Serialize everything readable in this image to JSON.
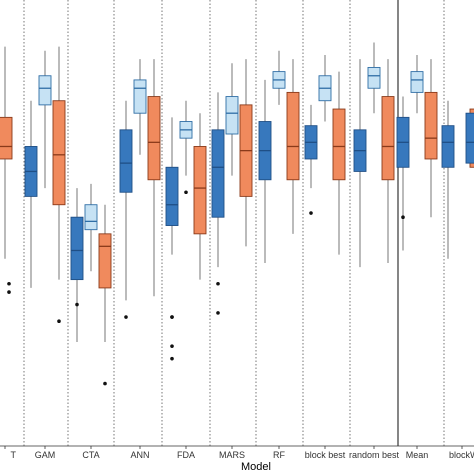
{
  "colors": {
    "dark_blue": "#3778bd",
    "light_blue": "#c6e2f4",
    "orange": "#f08a5d",
    "dark_blue_edge": "#1f4f86",
    "light_blue_edge": "#2f6ea6",
    "orange_edge": "#8a3a1a",
    "whisker": "#555555",
    "separator": "#555555",
    "solid_separator": "#222222"
  },
  "chart_data": {
    "type": "boxplot",
    "title": "",
    "xlabel": "Model",
    "ylabel": "",
    "ylim": [
      0,
      1
    ],
    "grid": false,
    "categories": [
      "T",
      "GAM",
      "CTA",
      "ANN",
      "FDA",
      "MARS",
      "RF",
      "block best",
      "random best",
      "Mean",
      "blockW"
    ],
    "solid_separator_after": "random best",
    "series": [
      {
        "color_key": "dark_blue",
        "boxes": [
          null,
          {
            "whisker_low": 0.38,
            "q1": 0.6,
            "median": 0.66,
            "q3": 0.72,
            "whisker_high": 0.83,
            "outliers": []
          },
          {
            "whisker_low": 0.25,
            "q1": 0.4,
            "median": 0.47,
            "q3": 0.55,
            "whisker_high": 0.62,
            "outliers": [
              0.34
            ]
          },
          {
            "whisker_low": 0.35,
            "q1": 0.61,
            "median": 0.68,
            "q3": 0.76,
            "whisker_high": 0.83,
            "outliers": [
              0.31
            ]
          },
          {
            "whisker_low": 0.46,
            "q1": 0.53,
            "median": 0.58,
            "q3": 0.67,
            "whisker_high": 0.79,
            "outliers": [
              0.31,
              0.31,
              0.24,
              0.21
            ]
          },
          {
            "whisker_low": 0.43,
            "q1": 0.55,
            "median": 0.67,
            "q3": 0.76,
            "whisker_high": 0.85,
            "outliers": [
              0.39,
              0.32
            ]
          },
          {
            "whisker_low": 0.44,
            "q1": 0.64,
            "median": 0.71,
            "q3": 0.78,
            "whisker_high": 0.88,
            "outliers": []
          },
          {
            "whisker_low": 0.62,
            "q1": 0.69,
            "median": 0.73,
            "q3": 0.77,
            "whisker_high": 0.82,
            "outliers": [
              0.56
            ]
          },
          {
            "whisker_low": 0.43,
            "q1": 0.66,
            "median": 0.71,
            "q3": 0.76,
            "whisker_high": 0.93,
            "outliers": []
          },
          {
            "whisker_low": 0.47,
            "q1": 0.67,
            "median": 0.73,
            "q3": 0.79,
            "whisker_high": 0.84,
            "outliers": [
              0.55
            ]
          },
          {
            "whisker_low": 0.45,
            "q1": 0.67,
            "median": 0.73,
            "q3": 0.77,
            "whisker_high": 0.83,
            "outliers": []
          }
        ]
      },
      {
        "color_key": "light_blue",
        "boxes": [
          null,
          {
            "whisker_low": 0.62,
            "q1": 0.82,
            "median": 0.86,
            "q3": 0.89,
            "whisker_high": 0.95,
            "outliers": []
          },
          {
            "whisker_low": 0.42,
            "q1": 0.52,
            "median": 0.54,
            "q3": 0.58,
            "whisker_high": 0.63,
            "outliers": []
          },
          {
            "whisker_low": 0.7,
            "q1": 0.8,
            "median": 0.86,
            "q3": 0.88,
            "whisker_high": 0.93,
            "outliers": []
          },
          {
            "whisker_low": 0.65,
            "q1": 0.74,
            "median": 0.76,
            "q3": 0.78,
            "whisker_high": 0.83,
            "outliers": [
              0.61
            ]
          },
          {
            "whisker_low": 0.65,
            "q1": 0.75,
            "median": 0.8,
            "q3": 0.84,
            "whisker_high": 0.92,
            "outliers": []
          },
          {
            "whisker_low": 0.82,
            "q1": 0.86,
            "median": 0.88,
            "q3": 0.9,
            "whisker_high": 0.95,
            "outliers": []
          },
          {
            "whisker_low": 0.78,
            "q1": 0.83,
            "median": 0.86,
            "q3": 0.89,
            "whisker_high": 0.94,
            "outliers": []
          },
          {
            "whisker_low": 0.8,
            "q1": 0.86,
            "median": 0.89,
            "q3": 0.91,
            "whisker_high": 0.97,
            "outliers": []
          },
          {
            "whisker_low": 0.8,
            "q1": 0.85,
            "median": 0.88,
            "q3": 0.9,
            "whisker_high": 0.94,
            "outliers": []
          },
          null
        ]
      },
      {
        "color_key": "orange",
        "boxes": [
          null,
          {
            "whisker_low": 0.4,
            "q1": 0.58,
            "median": 0.7,
            "q3": 0.83,
            "whisker_high": 0.96,
            "outliers": [
              0.3
            ]
          },
          {
            "whisker_low": 0.25,
            "q1": 0.38,
            "median": 0.48,
            "q3": 0.51,
            "whisker_high": 0.58,
            "outliers": [
              0.15
            ]
          },
          {
            "whisker_low": 0.36,
            "q1": 0.64,
            "median": 0.73,
            "q3": 0.84,
            "whisker_high": 0.93,
            "outliers": []
          },
          {
            "whisker_low": 0.4,
            "q1": 0.51,
            "median": 0.62,
            "q3": 0.72,
            "whisker_high": 0.8,
            "outliers": []
          },
          {
            "whisker_low": 0.48,
            "q1": 0.6,
            "median": 0.71,
            "q3": 0.82,
            "whisker_high": 0.93,
            "outliers": []
          },
          {
            "whisker_low": 0.51,
            "q1": 0.64,
            "median": 0.72,
            "q3": 0.85,
            "whisker_high": 0.93,
            "outliers": []
          },
          {
            "whisker_low": 0.46,
            "q1": 0.64,
            "median": 0.72,
            "q3": 0.81,
            "whisker_high": 0.9,
            "outliers": []
          },
          {
            "whisker_low": 0.44,
            "q1": 0.64,
            "median": 0.72,
            "q3": 0.84,
            "whisker_high": 0.93,
            "outliers": []
          },
          {
            "whisker_low": 0.55,
            "q1": 0.69,
            "median": 0.74,
            "q3": 0.85,
            "whisker_high": 0.93,
            "outliers": []
          },
          {
            "whisker_low": 0.52,
            "q1": 0.67,
            "median": 0.73,
            "q3": 0.81,
            "whisker_high": 0.88,
            "outliers": []
          }
        ]
      }
    ],
    "partial_boxes_at_edges": {
      "T": {
        "q1": 0.69,
        "median": 0.72,
        "q3": 0.79,
        "outliers": [
          0.39,
          0.37
        ]
      },
      "blockW": {
        "q1": 0.68,
        "median": 0.73,
        "q3": 0.8
      }
    }
  }
}
